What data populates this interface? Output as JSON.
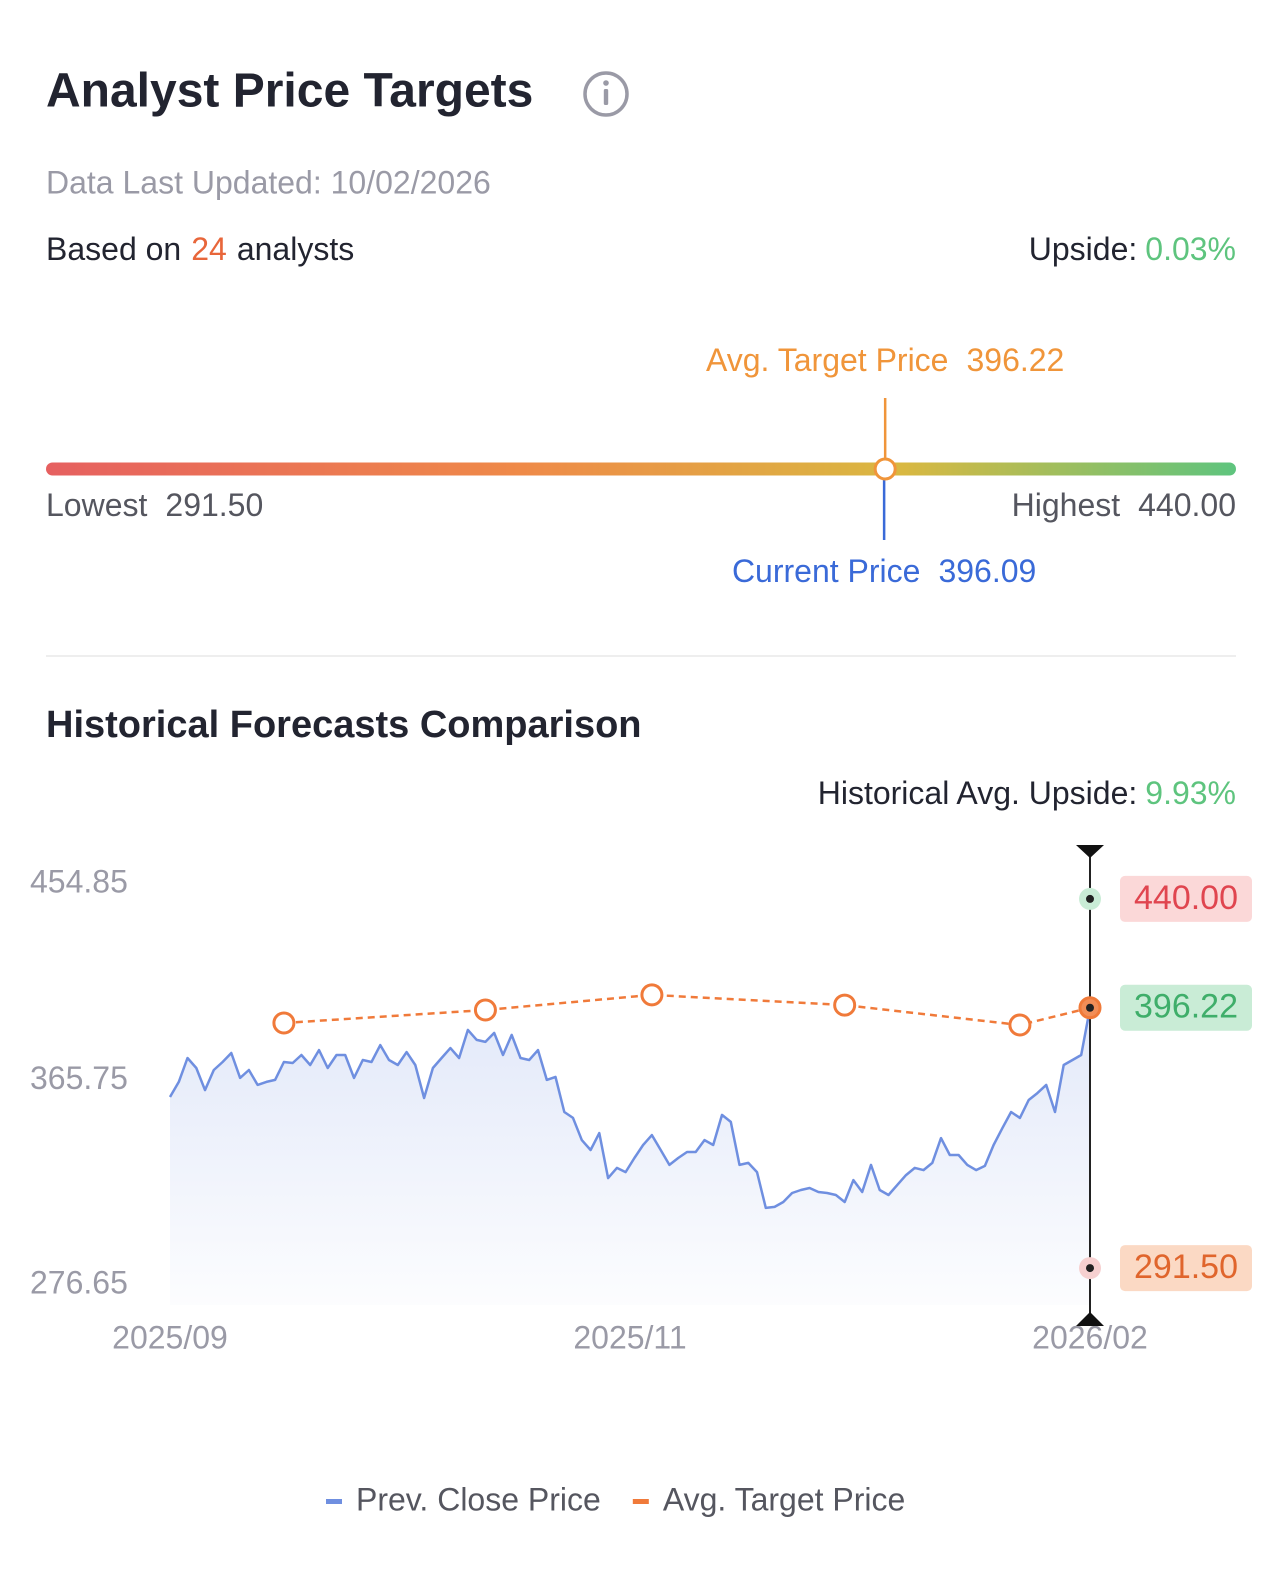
{
  "header": {
    "title": "Analyst Price Targets",
    "updated": "Data Last Updated: 10/02/2026",
    "based_prefix": "Based on",
    "analysts": 24,
    "based_suffix": "analysts",
    "upside_label": "Upside:",
    "upside": "0.03%"
  },
  "range": {
    "avg_label": "Avg. Target Price",
    "avg": {
      "value": 396.22,
      "label": "396.22"
    },
    "low_label": "Lowest",
    "low": {
      "value": 291.5,
      "label": "291.50"
    },
    "high_label": "Highest",
    "high": {
      "value": 440,
      "label": "440.00"
    },
    "current_label": "Current Price",
    "current": {
      "value": 396.09,
      "label": "396.09"
    }
  },
  "chart_data": {
    "type": "line",
    "title": "Historical Forecasts Comparison",
    "annotation_label": "Historical Avg. Upside:",
    "annotation_value": "9.93%",
    "xlim": [
      0,
      105
    ],
    "xticks": [
      {
        "value": 0,
        "label": "2025/09"
      },
      {
        "value": 52.5,
        "label": "2025/11"
      },
      {
        "value": 105,
        "label": "2026/02"
      }
    ],
    "ylim": [
      276.65,
      454.85
    ],
    "yticks": [
      454.85,
      365.75,
      276.65
    ],
    "series": [
      {
        "name": "Prev. Close Price",
        "color": "#6f8fe0",
        "values": [
          360.3,
          366.4,
          376.0,
          372.0,
          363.1,
          371.2,
          374.4,
          378.0,
          368.0,
          371.2,
          365.2,
          366.4,
          367.2,
          374.4,
          374.0,
          377.2,
          373.2,
          379.2,
          372.0,
          377.2,
          377.2,
          368.0,
          375.2,
          374.4,
          381.2,
          375.2,
          373.2,
          378.4,
          373.2,
          359.9,
          372.0,
          376.0,
          380.0,
          376.0,
          387.3,
          383.3,
          382.5,
          386.1,
          377.2,
          385.3,
          376.0,
          375.2,
          379.2,
          367.2,
          368.4,
          354.3,
          351.9,
          343.0,
          339.0,
          345.8,
          327.7,
          331.8,
          330.1,
          335.8,
          341.0,
          345.0,
          339.0,
          333.0,
          335.8,
          338.2,
          338.2,
          343.0,
          341.0,
          353.1,
          350.3,
          333.0,
          333.8,
          330.1,
          315.7,
          316.1,
          318.1,
          321.7,
          322.9,
          323.7,
          322.1,
          321.7,
          320.9,
          318.1,
          326.9,
          322.1,
          333.0,
          322.9,
          320.9,
          324.9,
          328.9,
          331.8,
          330.9,
          333.8,
          343.8,
          337.0,
          337.0,
          333.0,
          330.9,
          332.6,
          341.0,
          347.8,
          354.3,
          351.9,
          359.1,
          361.9,
          365.2,
          354.3,
          373.2,
          375.2,
          377.2,
          396.09
        ]
      },
      {
        "name": "Avg. Target Price",
        "color": "#f07a3a",
        "dashed": true,
        "x": [
          13,
          36,
          55,
          77,
          97,
          105
        ],
        "values": [
          390.1,
          395.3,
          401.4,
          397.3,
          389.3,
          396.22
        ]
      }
    ],
    "markers": [
      {
        "value": 440,
        "label": "440.00",
        "text_color": "#e0454f",
        "bg": "#fbd8d8",
        "halo": "#c9ecd6"
      },
      {
        "value": 396.22,
        "label": "396.22",
        "text_color": "#3fae6a",
        "bg": "#c9ecd6",
        "halo": "#f07a3a"
      },
      {
        "value": 291.5,
        "label": "291.50",
        "text_color": "#e0652c",
        "bg": "#fbd9c4",
        "halo": "#f6d0d0"
      }
    ]
  }
}
